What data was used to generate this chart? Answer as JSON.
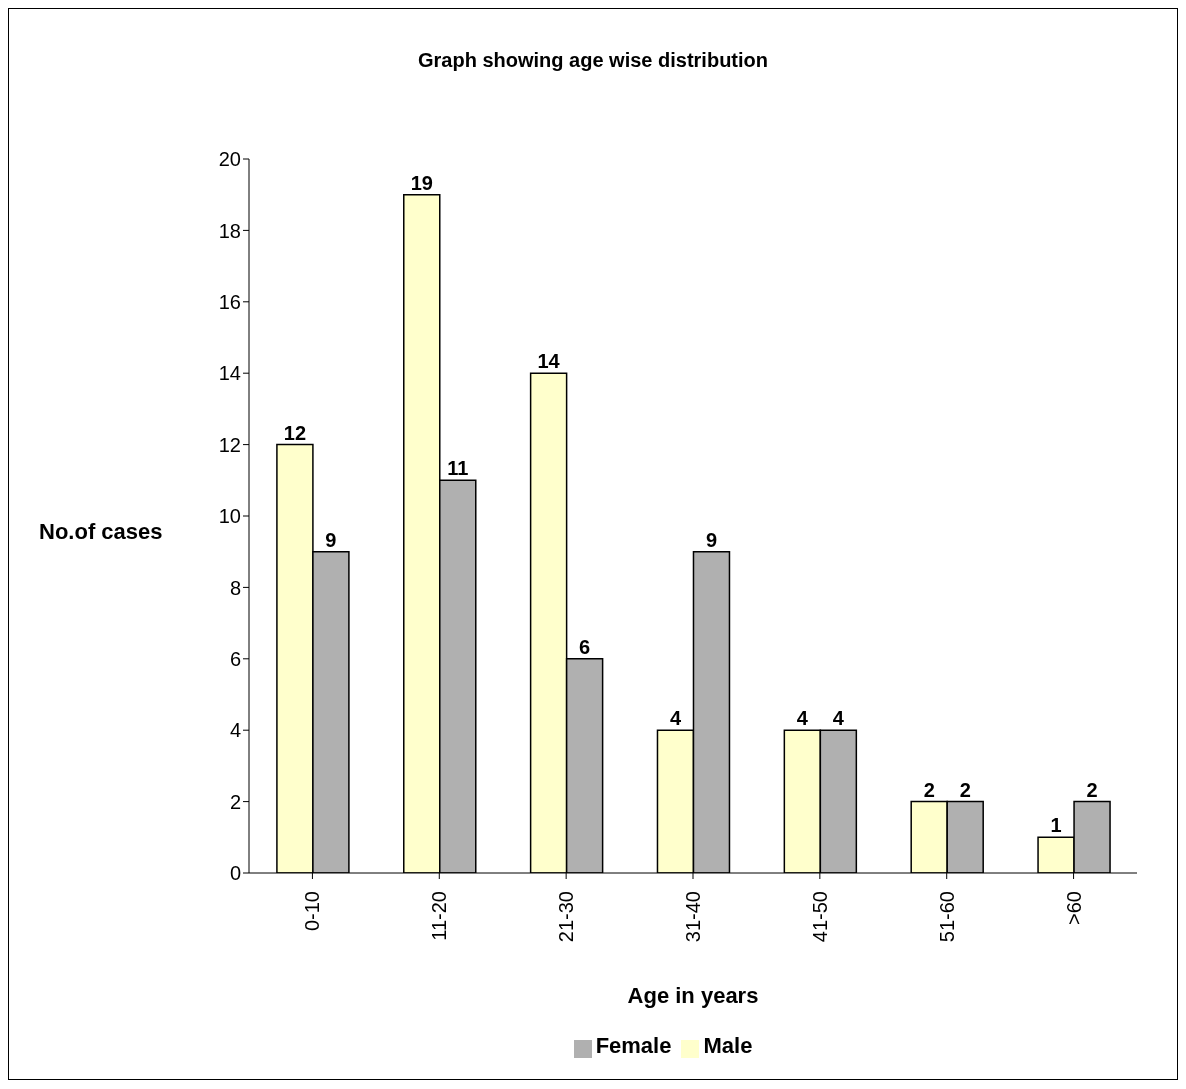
{
  "chart_data": {
    "type": "bar",
    "title": "Graph showing age wise distribution",
    "xlabel": "Age in years",
    "ylabel": "No.of cases",
    "categories": [
      "0-10",
      "11-20",
      "21-30",
      "31-40",
      "41-50",
      "51-60",
      ">60"
    ],
    "series": [
      {
        "name": "Male",
        "color": "#ffffcc",
        "values": [
          12,
          19,
          14,
          4,
          4,
          2,
          1
        ]
      },
      {
        "name": "Female",
        "color": "#b0b0b0",
        "values": [
          9,
          11,
          6,
          9,
          4,
          2,
          2
        ]
      }
    ],
    "ylim": [
      0,
      20
    ],
    "yticks": [
      0,
      2,
      4,
      6,
      8,
      10,
      12,
      14,
      16,
      18,
      20
    ],
    "grid": false,
    "legend": "bottom",
    "data_labels": true
  }
}
